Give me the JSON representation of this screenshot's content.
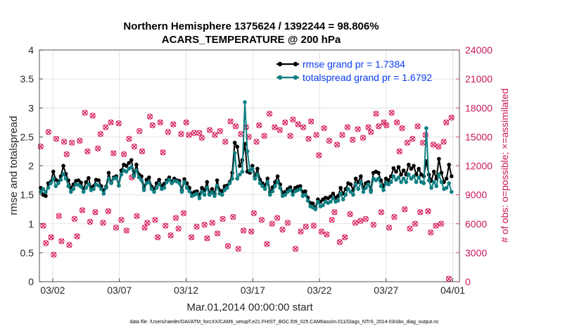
{
  "chart_data": {
    "type": "line",
    "title_line1": "Northern Hemisphere 1375624 / 1392244 = 98.806%",
    "title_line2": "ACARS_TEMPERATURE @ 200 hPa",
    "xlabel": "Mar.01,2014 00:00:00 start",
    "ylabel_left": "rmse and totalspread",
    "ylabel_right": "# of obs: o=possible; ×=assimilated",
    "footnote": "data file: /Users/raeder/DAI/ATM_forcXX/CAM6_setup/f.e21.FHIST_BGC.f09_025.CAM6assim.011/Diags_NTrS_2014-03/obs_diag_output.nc",
    "x_range_days": [
      0,
      31.5
    ],
    "x_ticks": [
      {
        "day": 1,
        "label": "03/02"
      },
      {
        "day": 6,
        "label": "03/07"
      },
      {
        "day": 11,
        "label": "03/12"
      },
      {
        "day": 16,
        "label": "03/17"
      },
      {
        "day": 21,
        "label": "03/22"
      },
      {
        "day": 26,
        "label": "03/27"
      },
      {
        "day": 31,
        "label": "04/01"
      }
    ],
    "y_left_range": [
      0,
      4
    ],
    "y_left_ticks": [
      "0",
      "0.5",
      "1",
      "1.5",
      "2",
      "2.5",
      "3",
      "3.5",
      "4"
    ],
    "y_right_range": [
      0,
      24000
    ],
    "y_right_ticks": [
      "0",
      "3000",
      "6000",
      "9000",
      "12000",
      "15000",
      "18000",
      "21000",
      "24000"
    ],
    "colors": {
      "rmse": "#000000",
      "spread": "#0f7f82",
      "obs": "#d6175c",
      "legend_text": "#0b3ef5",
      "right_axis": "#c8175d"
    },
    "series": [
      {
        "name": "rmse grand pr = 1.7384",
        "key": "rmse",
        "values": [
          1.62,
          1.5,
          1.48,
          1.7,
          1.72,
          1.9,
          1.76,
          1.73,
          1.82,
          2.0,
          1.86,
          1.75,
          1.62,
          1.68,
          1.74,
          1.75,
          1.71,
          1.6,
          1.72,
          1.79,
          1.62,
          1.65,
          1.76,
          1.75,
          1.65,
          1.58,
          1.64,
          1.88,
          1.71,
          1.8,
          1.82,
          1.66,
          1.92,
          2.02,
          2.0,
          2.05,
          2.1,
          1.85,
          2.02,
          1.85,
          1.82,
          1.62,
          1.76,
          1.8,
          1.64,
          1.6,
          1.7,
          1.76,
          1.65,
          1.69,
          1.75,
          1.8,
          1.73,
          1.78,
          1.75,
          1.74,
          1.58,
          1.77,
          1.7,
          1.62,
          1.52,
          1.55,
          1.56,
          1.5,
          1.62,
          1.58,
          1.72,
          1.52,
          1.6,
          1.52,
          1.75,
          1.58,
          1.56,
          1.65,
          1.66,
          1.72,
          1.88,
          2.4,
          2.33,
          2.0,
          2.1,
          2.38,
          1.9,
          1.88,
          2.0,
          1.82,
          1.95,
          1.76,
          1.7,
          1.66,
          1.78,
          1.55,
          1.63,
          1.72,
          1.82,
          1.68,
          1.53,
          1.55,
          1.6,
          1.63,
          1.56,
          1.62,
          1.64,
          1.65,
          1.55,
          1.56,
          1.45,
          1.36,
          1.35,
          1.28,
          1.42,
          1.38,
          1.42,
          1.45,
          1.44,
          1.47,
          1.52,
          1.45,
          1.48,
          1.62,
          1.52,
          1.6,
          1.7,
          1.68,
          1.58,
          1.78,
          1.72,
          1.82,
          1.62,
          1.7,
          1.72,
          1.58,
          1.88,
          1.9,
          1.88,
          1.75,
          1.65,
          1.78,
          1.75,
          1.82,
          1.96,
          1.9,
          1.98,
          1.85,
          1.92,
          1.85,
          2.02,
          1.95,
          2.0,
          1.85,
          1.95,
          1.85,
          1.82,
          2.08,
          1.85,
          1.74,
          1.9,
          1.78,
          2.12,
          1.88,
          1.72,
          1.78,
          2.02,
          1.82
        ]
      },
      {
        "name": "totalspread grand pr = 1.6792",
        "key": "spread",
        "values": [
          1.55,
          1.6,
          1.55,
          1.62,
          1.7,
          1.78,
          1.65,
          1.7,
          1.76,
          1.86,
          1.78,
          1.65,
          1.55,
          1.6,
          1.68,
          1.67,
          1.64,
          1.55,
          1.62,
          1.68,
          1.58,
          1.6,
          1.68,
          1.66,
          1.6,
          1.52,
          1.62,
          1.78,
          1.7,
          1.78,
          1.79,
          1.66,
          1.85,
          1.92,
          1.9,
          1.95,
          1.98,
          1.82,
          1.92,
          1.8,
          1.75,
          1.58,
          1.7,
          1.72,
          1.6,
          1.55,
          1.62,
          1.68,
          1.6,
          1.62,
          1.72,
          1.76,
          1.7,
          1.74,
          1.73,
          1.7,
          1.55,
          1.72,
          1.62,
          1.56,
          1.48,
          1.5,
          1.52,
          1.44,
          1.55,
          1.5,
          1.62,
          1.5,
          1.54,
          1.48,
          1.66,
          1.52,
          1.5,
          1.58,
          1.62,
          1.7,
          1.78,
          2.22,
          1.78,
          1.85,
          1.9,
          3.1,
          2.25,
          1.92,
          1.95,
          1.78,
          1.85,
          1.7,
          1.65,
          1.6,
          1.72,
          1.5,
          1.56,
          1.65,
          1.72,
          1.62,
          1.48,
          1.5,
          1.55,
          1.58,
          1.5,
          1.56,
          1.58,
          1.6,
          1.48,
          1.5,
          1.4,
          1.3,
          1.28,
          1.25,
          1.38,
          1.3,
          1.32,
          1.38,
          1.36,
          1.38,
          1.44,
          1.38,
          1.4,
          1.52,
          1.42,
          1.5,
          1.6,
          1.55,
          1.5,
          1.68,
          1.6,
          1.72,
          1.55,
          1.62,
          1.68,
          1.55,
          1.78,
          1.75,
          1.78,
          1.65,
          1.58,
          1.7,
          1.68,
          1.72,
          1.82,
          1.76,
          1.8,
          1.72,
          1.78,
          1.72,
          1.85,
          1.78,
          1.82,
          1.72,
          1.8,
          1.72,
          1.7,
          2.65,
          1.75,
          1.62,
          1.72,
          1.65,
          1.85,
          1.72,
          1.6,
          1.62,
          1.7,
          1.55
        ]
      }
    ],
    "obs_series": {
      "name": "# of obs (possible / assimilated)",
      "axis": "right",
      "values": [
        14000,
        5800,
        4000,
        15500,
        4600,
        2800,
        14800,
        6800,
        4200,
        14500,
        13200,
        3800,
        14400,
        6500,
        4700,
        14600,
        7400,
        17500,
        13500,
        6200,
        17200,
        7200,
        13800,
        15300,
        6100,
        16000,
        7300,
        16500,
        13300,
        5600,
        16400,
        6400,
        13200,
        5300,
        14800,
        10800,
        14000,
        6800,
        15600,
        13500,
        5600,
        6100,
        17100,
        16200,
        6400,
        4600,
        16500,
        13400,
        5800,
        15500,
        4800,
        16300,
        6600,
        5500,
        15300,
        7100,
        16500,
        15200,
        4600,
        15400,
        5700,
        15400,
        14900,
        5900,
        4500,
        15700,
        6100,
        15200,
        5000,
        15600,
        6500,
        14500,
        3700,
        16600,
        6700,
        16100,
        3400,
        15300,
        5300,
        16000,
        15000,
        5200,
        7100,
        14500,
        16200,
        6400,
        15100,
        3900,
        17400,
        6000,
        16000,
        6600,
        15700,
        5400,
        16500,
        6100,
        15100,
        16800,
        3400,
        16300,
        5200,
        16000,
        5700,
        14800,
        16600,
        5800,
        15200,
        13100,
        5200,
        15900,
        4900,
        14600,
        6400,
        7200,
        14200,
        4100,
        15200,
        4600,
        16000,
        7000,
        14700,
        6100,
        15800,
        6300,
        14900,
        6500,
        16000,
        15500,
        5900,
        17400,
        16100,
        7200,
        16500,
        16200,
        5600,
        17500,
        6700,
        16500,
        13500,
        15900,
        7500,
        14400,
        5500,
        14800,
        6000,
        16100,
        7200,
        14400,
        15200,
        7300,
        5100,
        14200,
        5800,
        14000,
        6000,
        14500,
        16500,
        300,
        17000
      ]
    },
    "legend": [
      {
        "label": "rmse grand pr = 1.7384",
        "key": "rmse"
      },
      {
        "label": "totalspread grand pr = 1.6792",
        "key": "spread"
      }
    ]
  }
}
